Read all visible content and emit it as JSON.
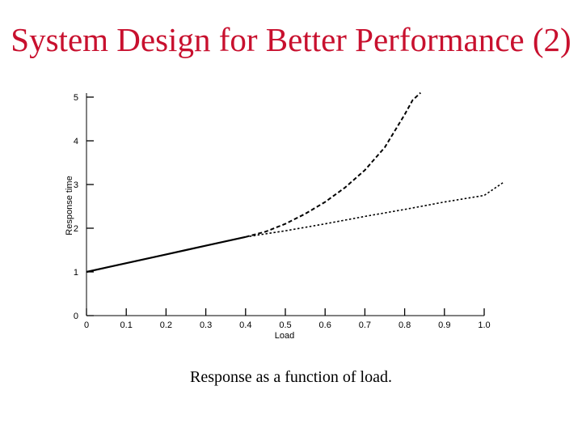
{
  "slide": {
    "title": "System Design for Better Performance (2)",
    "caption": "Response as a function of load.",
    "title_color": "#c8102e"
  },
  "chart_data": {
    "type": "line",
    "xlabel": "Load",
    "ylabel": "Response time",
    "xlim": [
      0,
      1.0
    ],
    "ylim": [
      0,
      5
    ],
    "x_ticks": [
      0,
      0.1,
      0.2,
      0.3,
      0.4,
      0.5,
      0.6,
      0.7,
      0.8,
      0.9,
      1.0
    ],
    "x_tick_labels": [
      "0",
      "0.1",
      "0.2",
      "0.3",
      "0.4",
      "0.5",
      "0.6",
      "0.7",
      "0.8",
      "0.9",
      "1.0"
    ],
    "y_ticks": [
      0,
      1,
      2,
      3,
      4,
      5
    ],
    "y_tick_labels": [
      "0",
      "1",
      "2",
      "3",
      "4",
      "5"
    ],
    "grid": false,
    "series": [
      {
        "style": "solid",
        "x": [
          0,
          0.05,
          0.1,
          0.15,
          0.2,
          0.25,
          0.3,
          0.35,
          0.4
        ],
        "y": [
          1.0,
          1.1,
          1.2,
          1.3,
          1.4,
          1.5,
          1.6,
          1.7,
          1.8
        ]
      },
      {
        "style": "dashed",
        "x": [
          0.4,
          0.45,
          0.5,
          0.55,
          0.6,
          0.65,
          0.7,
          0.75,
          0.8,
          0.82,
          0.84
        ],
        "y": [
          1.8,
          1.92,
          2.1,
          2.33,
          2.6,
          2.93,
          3.33,
          3.85,
          4.6,
          4.93,
          5.1
        ]
      },
      {
        "style": "dotted",
        "x": [
          0.4,
          0.5,
          0.6,
          0.7,
          0.8,
          0.9,
          1.0,
          1.05
        ],
        "y": [
          1.8,
          1.94,
          2.1,
          2.27,
          2.43,
          2.6,
          2.75,
          3.06
        ]
      }
    ]
  }
}
